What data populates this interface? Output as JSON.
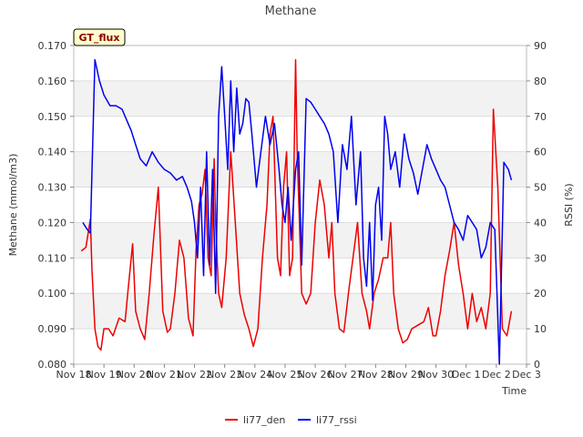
{
  "chart_data": {
    "type": "line",
    "title": "Methane",
    "badge": "GT_flux",
    "xlabel": "Time",
    "ylabel": "Methane (mmol/m3)",
    "y2label": "RSSI (%)",
    "xlim": [
      0,
      15
    ],
    "ylim": [
      0.08,
      0.17
    ],
    "y2lim": [
      0,
      90
    ],
    "x_ticks": [
      {
        "value": 0,
        "label": "Nov 18"
      },
      {
        "value": 1,
        "label": "Nov 19"
      },
      {
        "value": 2,
        "label": "Nov 20"
      },
      {
        "value": 3,
        "label": "Nov 21"
      },
      {
        "value": 4,
        "label": "Nov 22"
      },
      {
        "value": 5,
        "label": "Nov 23"
      },
      {
        "value": 6,
        "label": "Nov 24"
      },
      {
        "value": 7,
        "label": "Nov 25"
      },
      {
        "value": 8,
        "label": "Nov 26"
      },
      {
        "value": 9,
        "label": "Nov 27"
      },
      {
        "value": 10,
        "label": "Nov 28"
      },
      {
        "value": 11,
        "label": "Nov 29"
      },
      {
        "value": 12,
        "label": "Nov 30"
      },
      {
        "value": 13,
        "label": "Dec 1"
      },
      {
        "value": 14,
        "label": "Dec 2"
      },
      {
        "value": 15,
        "label": "Dec 3"
      }
    ],
    "y_ticks": [
      {
        "value": 0.08,
        "label": "0.080"
      },
      {
        "value": 0.09,
        "label": "0.090"
      },
      {
        "value": 0.1,
        "label": "0.100"
      },
      {
        "value": 0.11,
        "label": "0.110"
      },
      {
        "value": 0.12,
        "label": "0.120"
      },
      {
        "value": 0.13,
        "label": "0.130"
      },
      {
        "value": 0.14,
        "label": "0.140"
      },
      {
        "value": 0.15,
        "label": "0.150"
      },
      {
        "value": 0.16,
        "label": "0.160"
      },
      {
        "value": 0.17,
        "label": "0.170"
      }
    ],
    "y2_ticks": [
      {
        "value": 0,
        "label": "0"
      },
      {
        "value": 10,
        "label": "10"
      },
      {
        "value": 20,
        "label": "20"
      },
      {
        "value": 30,
        "label": "30"
      },
      {
        "value": 40,
        "label": "40"
      },
      {
        "value": 50,
        "label": "50"
      },
      {
        "value": 60,
        "label": "60"
      },
      {
        "value": 70,
        "label": "70"
      },
      {
        "value": 80,
        "label": "80"
      },
      {
        "value": 90,
        "label": "90"
      }
    ],
    "series": [
      {
        "name": "li77_den",
        "color": "#ee0000",
        "axis": "left",
        "x": [
          0.25,
          0.4,
          0.55,
          0.6,
          0.7,
          0.8,
          0.9,
          1.0,
          1.15,
          1.3,
          1.5,
          1.7,
          1.8,
          1.95,
          2.05,
          2.2,
          2.35,
          2.5,
          2.65,
          2.8,
          2.95,
          3.1,
          3.2,
          3.35,
          3.5,
          3.65,
          3.8,
          3.95,
          4.05,
          4.15,
          4.25,
          4.35,
          4.45,
          4.55,
          4.65,
          4.7,
          4.8,
          4.9,
          5.05,
          5.2,
          5.35,
          5.5,
          5.65,
          5.8,
          5.95,
          6.1,
          6.25,
          6.4,
          6.5,
          6.6,
          6.75,
          6.85,
          6.95,
          7.05,
          7.15,
          7.25,
          7.35,
          7.4,
          7.55,
          7.7,
          7.85,
          8.0,
          8.15,
          8.3,
          8.45,
          8.55,
          8.65,
          8.8,
          8.95,
          9.1,
          9.25,
          9.4,
          9.55,
          9.7,
          9.8,
          9.95,
          10.1,
          10.25,
          10.4,
          10.5,
          10.6,
          10.75,
          10.9,
          11.05,
          11.2,
          11.4,
          11.6,
          11.75,
          11.9,
          12.0,
          12.15,
          12.3,
          12.45,
          12.6,
          12.75,
          12.9,
          13.05,
          13.2,
          13.35,
          13.5,
          13.65,
          13.8,
          13.9,
          14.05,
          14.2,
          14.35,
          14.5
        ],
        "values": [
          0.112,
          0.113,
          0.121,
          0.107,
          0.09,
          0.085,
          0.084,
          0.09,
          0.09,
          0.088,
          0.093,
          0.092,
          0.101,
          0.114,
          0.095,
          0.09,
          0.087,
          0.1,
          0.116,
          0.13,
          0.095,
          0.089,
          0.09,
          0.1,
          0.115,
          0.11,
          0.093,
          0.088,
          0.112,
          0.125,
          0.128,
          0.135,
          0.11,
          0.105,
          0.138,
          0.12,
          0.1,
          0.096,
          0.11,
          0.14,
          0.12,
          0.1,
          0.094,
          0.09,
          0.085,
          0.09,
          0.11,
          0.125,
          0.145,
          0.15,
          0.11,
          0.105,
          0.13,
          0.14,
          0.105,
          0.11,
          0.166,
          0.14,
          0.1,
          0.097,
          0.1,
          0.12,
          0.132,
          0.125,
          0.11,
          0.12,
          0.1,
          0.09,
          0.089,
          0.1,
          0.11,
          0.12,
          0.1,
          0.095,
          0.09,
          0.1,
          0.104,
          0.11,
          0.11,
          0.12,
          0.1,
          0.09,
          0.086,
          0.087,
          0.09,
          0.091,
          0.092,
          0.096,
          0.088,
          0.088,
          0.095,
          0.105,
          0.112,
          0.12,
          0.108,
          0.1,
          0.09,
          0.1,
          0.092,
          0.096,
          0.09,
          0.1,
          0.152,
          0.13,
          0.09,
          0.088,
          0.095
        ]
      },
      {
        "name": "li77_rssi",
        "color": "#0000ee",
        "axis": "right",
        "x": [
          0.3,
          0.45,
          0.55,
          0.7,
          0.85,
          1.0,
          1.2,
          1.4,
          1.6,
          1.8,
          1.9,
          2.05,
          2.2,
          2.4,
          2.6,
          2.8,
          3.0,
          3.2,
          3.4,
          3.6,
          3.75,
          3.9,
          4.0,
          4.1,
          4.2,
          4.3,
          4.4,
          4.5,
          4.6,
          4.7,
          4.8,
          4.9,
          5.0,
          5.1,
          5.2,
          5.3,
          5.4,
          5.5,
          5.6,
          5.7,
          5.8,
          5.9,
          6.05,
          6.2,
          6.35,
          6.5,
          6.65,
          6.8,
          6.9,
          7.0,
          7.1,
          7.2,
          7.35,
          7.45,
          7.55,
          7.7,
          7.85,
          8.0,
          8.15,
          8.3,
          8.45,
          8.6,
          8.75,
          8.9,
          9.05,
          9.2,
          9.35,
          9.5,
          9.6,
          9.7,
          9.8,
          9.9,
          10.0,
          10.1,
          10.2,
          10.3,
          10.4,
          10.5,
          10.65,
          10.8,
          10.95,
          11.1,
          11.25,
          11.4,
          11.55,
          11.7,
          11.85,
          12.0,
          12.15,
          12.3,
          12.45,
          12.6,
          12.75,
          12.9,
          13.05,
          13.2,
          13.35,
          13.5,
          13.65,
          13.8,
          13.95,
          14.1,
          14.25,
          14.4,
          14.5
        ],
        "values": [
          40,
          38,
          37,
          86,
          80,
          76,
          73,
          73,
          72,
          68,
          66,
          62,
          58,
          56,
          60,
          57,
          55,
          54,
          52,
          53,
          50,
          46,
          40,
          30,
          50,
          25,
          60,
          28,
          55,
          20,
          70,
          84,
          70,
          55,
          80,
          60,
          78,
          65,
          68,
          75,
          74,
          65,
          50,
          60,
          70,
          62,
          68,
          55,
          45,
          40,
          50,
          35,
          55,
          60,
          28,
          75,
          74,
          72,
          70,
          68,
          65,
          60,
          40,
          62,
          55,
          70,
          45,
          60,
          30,
          22,
          40,
          18,
          45,
          50,
          35,
          70,
          65,
          55,
          60,
          50,
          65,
          58,
          54,
          48,
          55,
          62,
          58,
          55,
          52,
          50,
          45,
          40,
          38,
          35,
          42,
          40,
          38,
          30,
          33,
          40,
          38,
          0,
          57,
          55,
          52
        ]
      }
    ]
  }
}
